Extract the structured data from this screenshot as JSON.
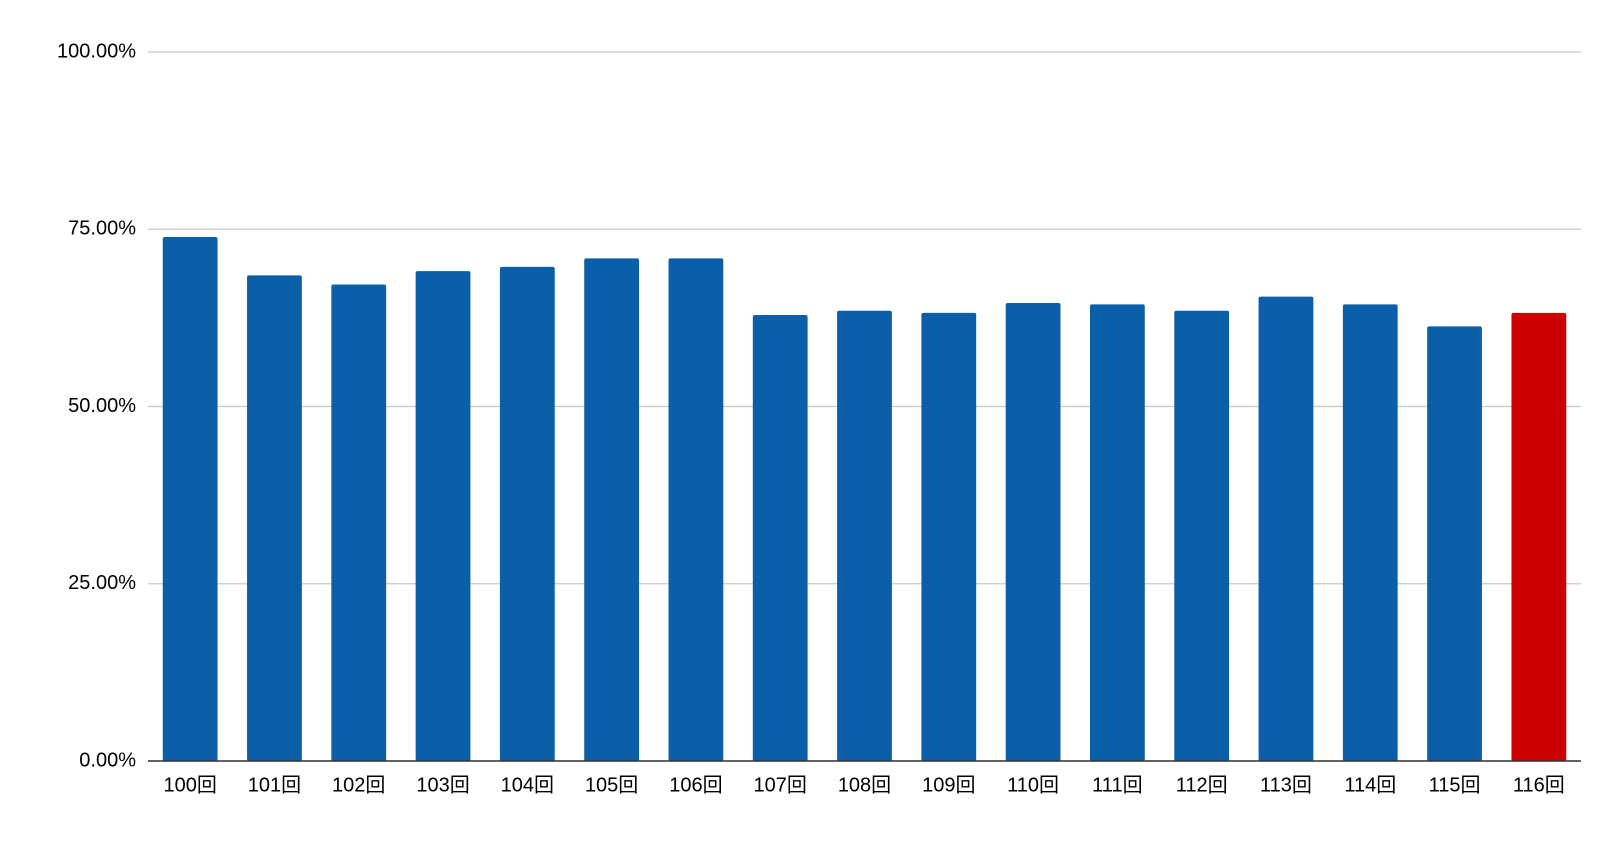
{
  "chart_data": {
    "type": "bar",
    "categories": [
      "100回",
      "101回",
      "102回",
      "103回",
      "104回",
      "105回",
      "106回",
      "107回",
      "108回",
      "109回",
      "110回",
      "111回",
      "112回",
      "113回",
      "114回",
      "115回",
      "116回"
    ],
    "values": [
      73.9,
      68.5,
      67.2,
      69.1,
      69.7,
      70.9,
      70.9,
      62.9,
      63.5,
      63.2,
      64.6,
      64.4,
      63.5,
      65.5,
      64.4,
      61.3,
      63.2
    ],
    "colors": [
      "#0b5ea8",
      "#0b5ea8",
      "#0b5ea8",
      "#0b5ea8",
      "#0b5ea8",
      "#0b5ea8",
      "#0b5ea8",
      "#0b5ea8",
      "#0b5ea8",
      "#0b5ea8",
      "#0b5ea8",
      "#0b5ea8",
      "#0b5ea8",
      "#0b5ea8",
      "#0b5ea8",
      "#0b5ea8",
      "#cc0000"
    ],
    "ylim": [
      0,
      100
    ],
    "yticks": [
      {
        "value": 0,
        "label": "0.00%"
      },
      {
        "value": 25,
        "label": "25.00%"
      },
      {
        "value": 50,
        "label": "50.00%"
      },
      {
        "value": 75,
        "label": "75.00%"
      },
      {
        "value": 100,
        "label": "100.00%"
      }
    ],
    "grid": true
  }
}
